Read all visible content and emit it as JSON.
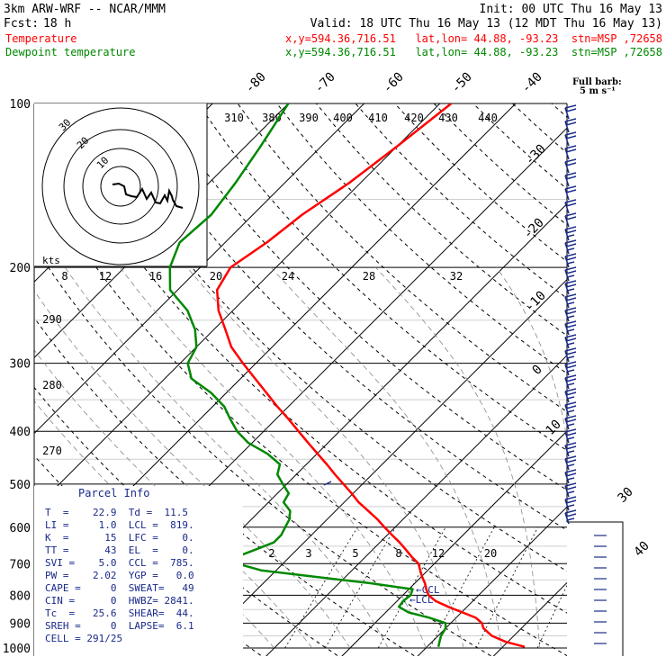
{
  "header": {
    "model": "3km ARW-WRF -- NCAR/MMM",
    "init": "Init: 00 UTC Thu 16 May 13",
    "fcst_label": "Fcst:",
    "fcst_value": "18 h",
    "valid": "Valid: 18 UTC Thu 16 May 13 (12 MDT Thu 16 May 13)",
    "series": [
      {
        "name": "Temperature",
        "info": "x,y=594.36,716.51   lat,lon= 44.88, -93.23  stn=MSP ,72658",
        "color": "#ff0000"
      },
      {
        "name": "Dewpoint temperature",
        "info": "x,y=594.36,716.51   lat,lon= 44.88, -93.23  stn=MSP ,72658",
        "color": "#00a000"
      }
    ]
  },
  "barb_legend": {
    "line1": "Full barb:",
    "line2": "5 m s⁻¹"
  },
  "chart_data": {
    "type": "line",
    "pressure_levels": [
      100,
      200,
      300,
      400,
      500,
      600,
      700,
      800,
      900,
      1000
    ],
    "isotherm_labels": [
      "-80",
      "-70",
      "-60",
      "-50",
      "-40",
      "-30",
      "-20",
      "-10",
      "0",
      "10",
      "30",
      "40"
    ],
    "theta_labels_top": [
      "310",
      "380",
      "390",
      "400",
      "410",
      "420",
      "430",
      "440"
    ],
    "theta_labels_left": [
      "290",
      "280",
      "270"
    ],
    "mixing_ratio_labels": [
      "2",
      "3",
      "5",
      "8",
      "12",
      "20"
    ],
    "ccl_label": "CCL",
    "lcl_label": "LCL",
    "series": [
      {
        "name": "Temperature",
        "color": "#ff0000",
        "p": [
          995,
          975,
          950,
          920,
          900,
          880,
          860,
          840,
          820,
          800,
          780,
          760,
          740,
          720,
          700,
          680,
          660,
          640,
          620,
          600,
          580,
          560,
          540,
          520,
          500,
          480,
          460,
          440,
          420,
          400,
          380,
          360,
          340,
          320,
          300,
          280,
          260,
          240,
          220,
          200,
          180,
          160,
          140,
          120,
          100
        ],
        "t": [
          22.9,
          19.8,
          17.1,
          15.0,
          14.1,
          12.6,
          10.1,
          7.5,
          5.1,
          3.4,
          2.3,
          1.3,
          0.1,
          -1.0,
          -2.1,
          -3.9,
          -5.6,
          -7.4,
          -9.4,
          -11.4,
          -13.4,
          -15.7,
          -18.1,
          -20.2,
          -22.5,
          -24.9,
          -27.3,
          -29.9,
          -32.6,
          -35.4,
          -38.3,
          -41.5,
          -44.7,
          -48.1,
          -51.7,
          -55.4,
          -58.5,
          -61.9,
          -64.8,
          -66.0,
          -64.5,
          -63.5,
          -61.5,
          -60.0,
          -58.5
        ]
      },
      {
        "name": "Dewpoint temperature",
        "color": "#008800",
        "p": [
          995,
          975,
          950,
          920,
          900,
          880,
          860,
          840,
          820,
          800,
          780,
          760,
          740,
          720,
          700,
          680,
          660,
          640,
          620,
          600,
          580,
          560,
          540,
          520,
          500,
          480,
          460,
          440,
          420,
          400,
          380,
          360,
          340,
          320,
          300,
          280,
          260,
          240,
          220,
          200,
          180,
          160,
          140,
          120,
          100
        ],
        "t": [
          11.5,
          11.0,
          10.4,
          10.0,
          9.3,
          6.5,
          3.0,
          1.0,
          0.8,
          1.0,
          0.5,
          -6.0,
          -14.0,
          -22.0,
          -26.0,
          -27.0,
          -25.5,
          -24.0,
          -24.0,
          -24.5,
          -25.0,
          -26.0,
          -28.0,
          -28.5,
          -30.5,
          -32.5,
          -33.5,
          -36.5,
          -40.5,
          -43.5,
          -46.0,
          -48.5,
          -52.0,
          -56.5,
          -59.0,
          -60.0,
          -62.5,
          -66.0,
          -71.0,
          -74.0,
          -76.0,
          -75.5,
          -76.5,
          -78.0,
          -80.0
        ]
      }
    ]
  },
  "hodograph": {
    "unit": "kts",
    "ring_labels": [
      "30",
      "20",
      "10"
    ],
    "speed_axis_labels": [
      "8",
      "12",
      "16",
      "20",
      "24",
      "28",
      "32"
    ]
  },
  "parcel_info": {
    "title": "Parcel Info",
    "rows": [
      "T  =    22.9  Td =  11.5",
      "LI =     1.0  LCL =  819.",
      "K  =      15  LFC =    0.",
      "TT =      43  EL  =    0.",
      "SVI =    5.0  CCL =  785.",
      "PW =    2.02  YGP =   0.0",
      "CAPE =     0  SWEAT=   49",
      "CIN =      0  HWBZ= 2841.",
      "Tc  =   25.6  SHEAR=  44.",
      "SREH =     0  LAPSE=  6.1",
      "CELL = 291/25"
    ]
  }
}
